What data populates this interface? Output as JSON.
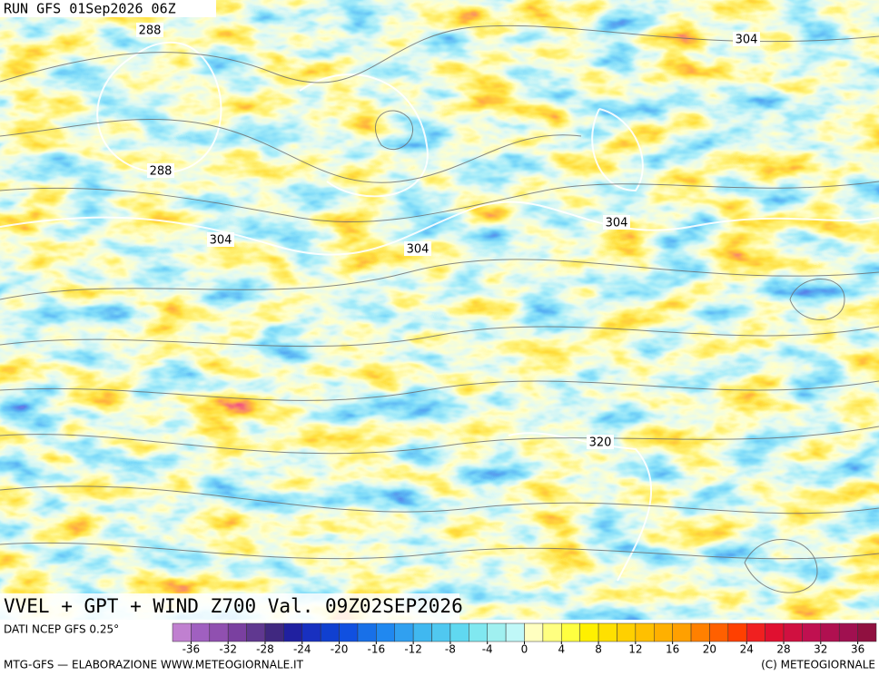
{
  "header": {
    "run": "RUN GFS 01Sep2026 06Z"
  },
  "map": {
    "contour_labels": [
      "288",
      "288",
      "304",
      "304",
      "304",
      "304",
      "320"
    ]
  },
  "title": "VVEL + GPT + WIND Z700 Val. 09Z02SEP2026",
  "source": "DATI NCEP GFS 0.25°",
  "legend": {
    "ticks": [
      -36,
      -32,
      -28,
      -24,
      -20,
      -16,
      -12,
      -8,
      -4,
      0,
      4,
      8,
      12,
      16,
      20,
      24,
      28,
      32,
      36
    ],
    "colors": [
      "#c080d0",
      "#a060c0",
      "#9050b0",
      "#7a40a0",
      "#603890",
      "#402880",
      "#2020a0",
      "#1830c0",
      "#1040d0",
      "#1050e0",
      "#1870e8",
      "#2088f0",
      "#30a0f0",
      "#40b8f0",
      "#50c8f0",
      "#60d8f0",
      "#80e8f0",
      "#a0f0f0",
      "#c0f8f8",
      "#ffffc0",
      "#ffff80",
      "#ffff40",
      "#fff000",
      "#ffe000",
      "#ffd000",
      "#ffc000",
      "#ffb000",
      "#ffa000",
      "#ff8000",
      "#ff6000",
      "#ff4000",
      "#f02020",
      "#e01030",
      "#d01040",
      "#c01050",
      "#b01050",
      "#a01050",
      "#901040"
    ]
  },
  "footer": {
    "left": "MTG-GFS — ELABORAZIONE WWW.METEOGIORNALE.IT",
    "right": "(C) METEOGIORNALE"
  }
}
